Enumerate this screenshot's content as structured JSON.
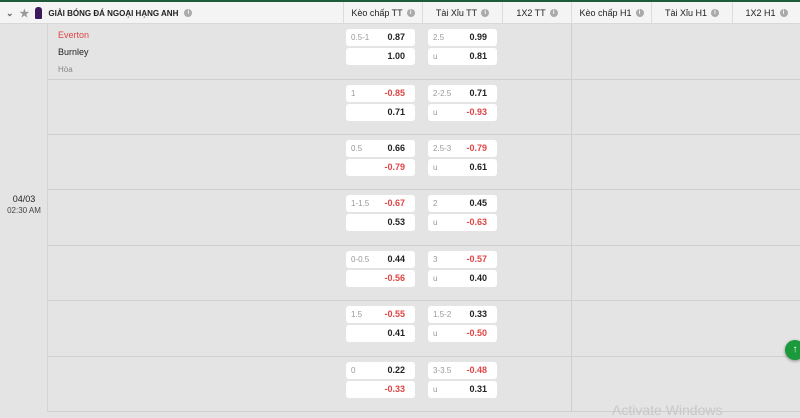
{
  "header": {
    "league": "GIẢI BÓNG ĐÁ NGOẠI HẠNG ANH",
    "columns": [
      "Kèo chấp TT",
      "Tài Xỉu TT",
      "1X2 TT",
      "Kèo chấp H1",
      "Tài Xỉu H1",
      "1X2 H1"
    ]
  },
  "match": {
    "date": "04/03",
    "time": "02:30 AM",
    "home": "Everton",
    "away": "Burnley",
    "draw": "Hòa"
  },
  "colors": {
    "negative": "#e04444",
    "accent": "#1a9a3a"
  },
  "rows": [
    {
      "hcap": {
        "line": "0.5-1",
        "home": "0.87",
        "away": "1.00"
      },
      "ou": {
        "line": "2.5",
        "over": "0.99",
        "under_label": "u",
        "under": "0.81"
      }
    },
    {
      "hcap": {
        "line": "1",
        "home": "-0.85",
        "away": "0.71"
      },
      "ou": {
        "line": "2-2.5",
        "over": "0.71",
        "under_label": "u",
        "under": "-0.93"
      }
    },
    {
      "hcap": {
        "line": "0.5",
        "home": "0.66",
        "away": "-0.79"
      },
      "ou": {
        "line": "2.5-3",
        "over": "-0.79",
        "under_label": "u",
        "under": "0.61"
      }
    },
    {
      "hcap": {
        "line": "1-1.5",
        "home": "-0.67",
        "away": "0.53"
      },
      "ou": {
        "line": "2",
        "over": "0.45",
        "under_label": "u",
        "under": "-0.63"
      }
    },
    {
      "hcap": {
        "line": "0-0.5",
        "home": "0.44",
        "away": "-0.56"
      },
      "ou": {
        "line": "3",
        "over": "-0.57",
        "under_label": "u",
        "under": "0.40"
      }
    },
    {
      "hcap": {
        "line": "1.5",
        "home": "-0.55",
        "away": "0.41"
      },
      "ou": {
        "line": "1.5-2",
        "over": "0.33",
        "under_label": "u",
        "under": "-0.50"
      }
    },
    {
      "hcap": {
        "line": "0",
        "home": "0.22",
        "away": "-0.33"
      },
      "ou": {
        "line": "3-3.5",
        "over": "-0.48",
        "under_label": "u",
        "under": "0.31"
      }
    }
  ],
  "watermark": "Activate Windows"
}
